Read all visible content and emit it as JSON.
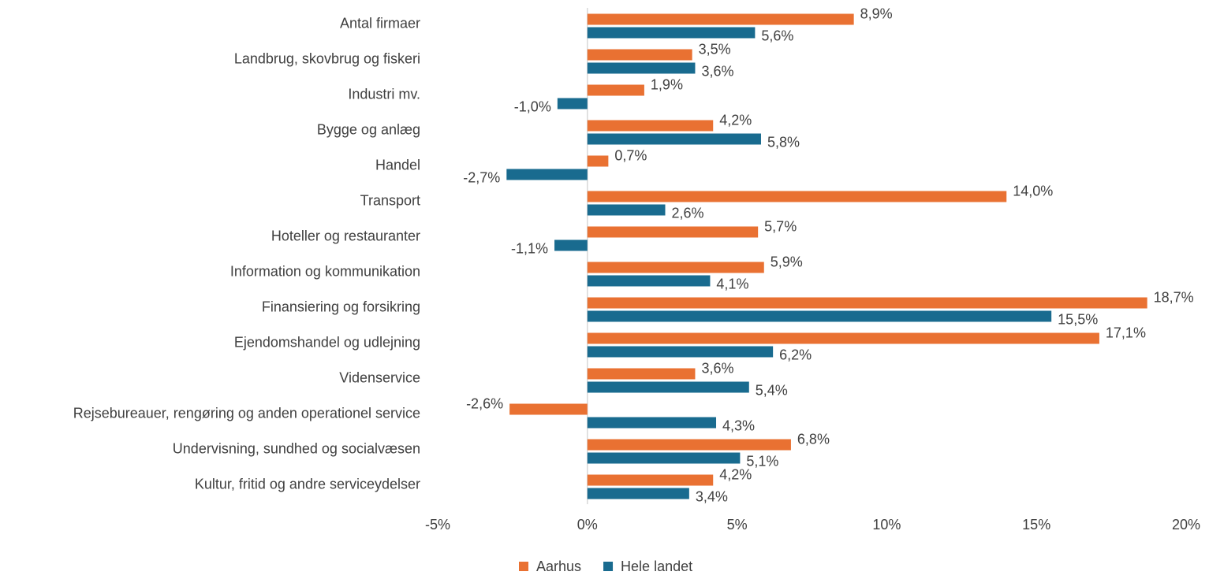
{
  "chart_data": {
    "type": "hbar",
    "categories": [
      "Antal firmaer",
      "Landbrug, skovbrug og fiskeri",
      "Industri mv.",
      "Bygge og anlæg",
      "Handel",
      "Transport",
      "Hoteller og restauranter",
      "Information og kommunikation",
      "Finansiering og forsikring",
      "Ejendomshandel og udlejning",
      "Videnservice",
      "Rejsebureauer, rengøring og anden operationel service",
      "Undervisning, sundhed og socialvæsen",
      "Kultur, fritid og andre serviceydelser"
    ],
    "series": [
      {
        "name": "Aarhus",
        "color": "#e97132",
        "values": [
          8.9,
          3.5,
          1.9,
          4.2,
          0.7,
          14.0,
          5.7,
          5.9,
          18.7,
          17.1,
          3.6,
          -2.6,
          6.8,
          4.2
        ],
        "value_labels": [
          "8,9%",
          "3,5%",
          "1,9%",
          "4,2%",
          "0,7%",
          "14,0%",
          "5,7%",
          "5,9%",
          "18,7%",
          "17,1%",
          "3,6%",
          "-2,6%",
          "6,8%",
          "4,2%"
        ]
      },
      {
        "name": "Hele landet",
        "color": "#196b8f",
        "values": [
          5.6,
          3.6,
          -1.0,
          5.8,
          -2.7,
          2.6,
          -1.1,
          4.1,
          15.5,
          6.2,
          5.4,
          4.3,
          5.1,
          3.4
        ],
        "value_labels": [
          "5,6%",
          "3,6%",
          "-1,0%",
          "5,8%",
          "-2,7%",
          "2,6%",
          "-1,1%",
          "4,1%",
          "15,5%",
          "6,2%",
          "5,4%",
          "4,3%",
          "5,1%",
          "3,4%"
        ]
      }
    ],
    "xlim": [
      -5,
      20
    ],
    "xticks": [
      {
        "value": -5,
        "label": "-5%"
      },
      {
        "value": 0,
        "label": "0%"
      },
      {
        "value": 5,
        "label": "5%"
      },
      {
        "value": 10,
        "label": "10%"
      },
      {
        "value": 15,
        "label": "15%"
      },
      {
        "value": 20,
        "label": "20%"
      }
    ],
    "legend": "bottom"
  }
}
